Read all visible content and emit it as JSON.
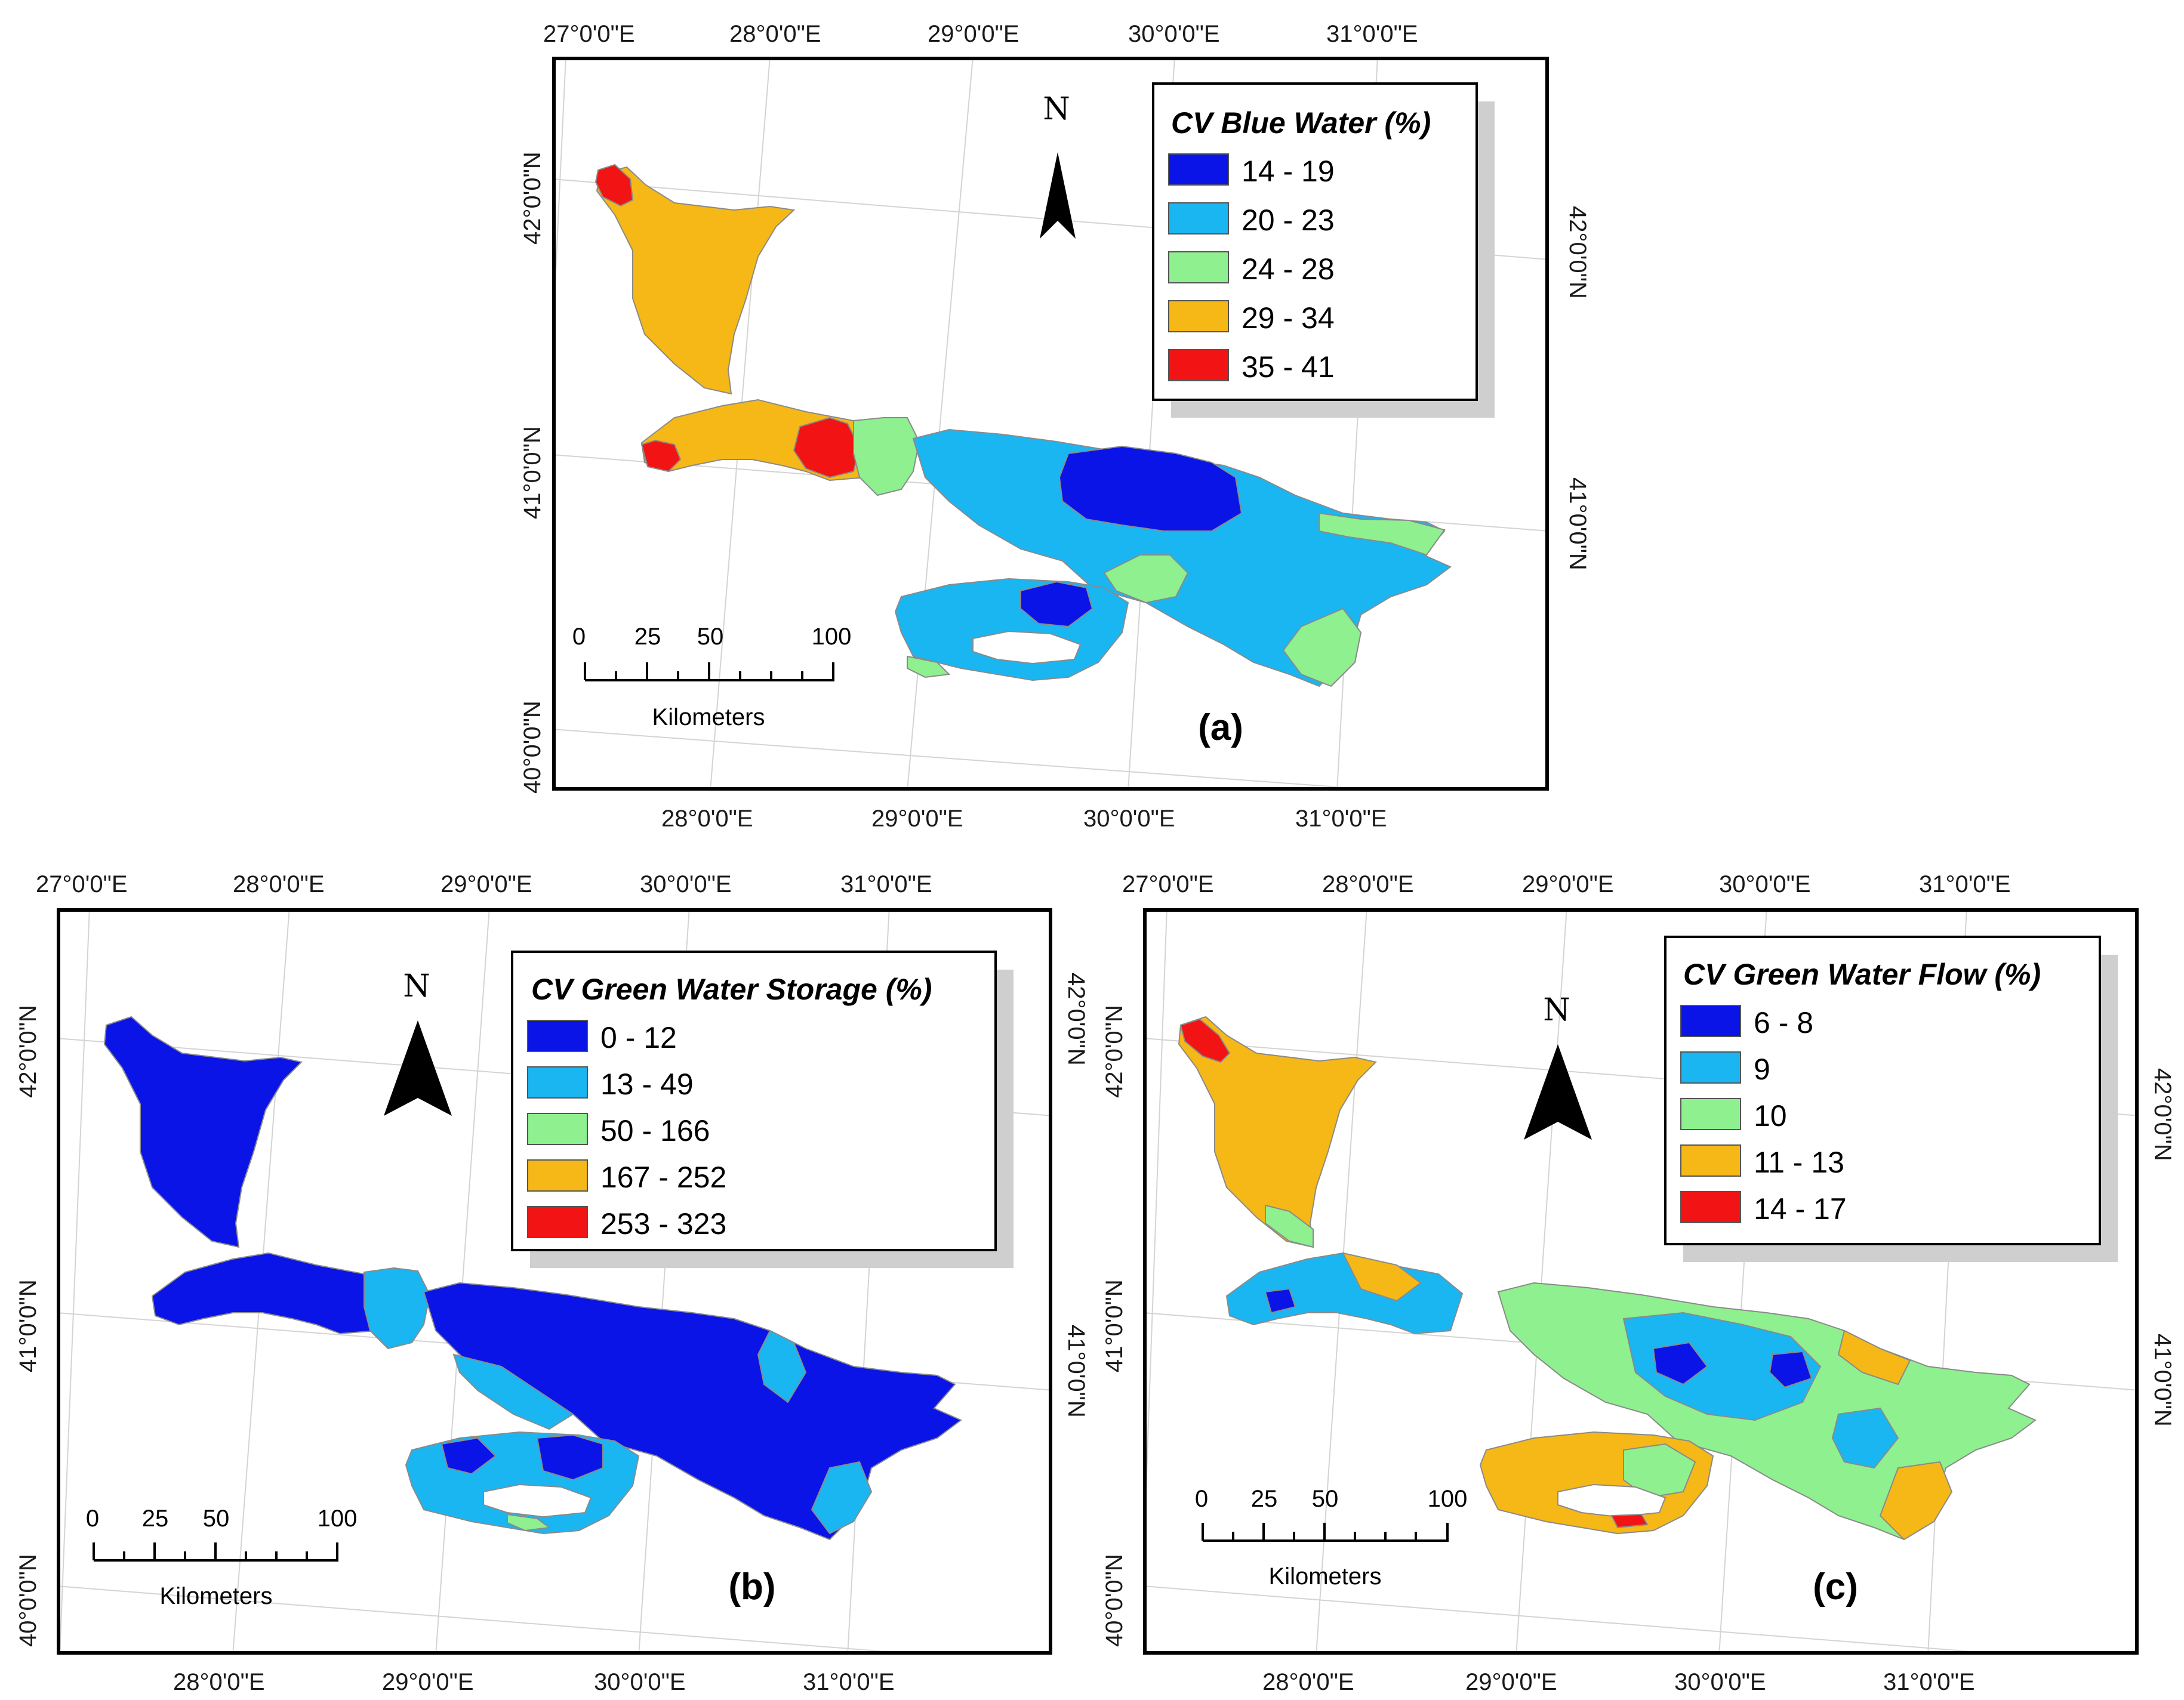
{
  "graticule": {
    "lon_top": [
      "27°0'0\"E",
      "28°0'0\"E",
      "29°0'0\"E",
      "30°0'0\"E",
      "31°0'0\"E"
    ],
    "lon_bottom": [
      "28°0'0\"E",
      "29°0'0\"E",
      "30°0'0\"E",
      "31°0'0\"E"
    ],
    "lat_left": [
      "42°0'0\"N",
      "41°0'0\"N",
      "40°0'0\"N"
    ],
    "lat_right": [
      "42°0'0\"N",
      "41°0'0\"N"
    ]
  },
  "north_arrow_label": "N",
  "scale_bar": {
    "ticks": [
      "0",
      "25",
      "50",
      "100"
    ],
    "units": "Kilometers"
  },
  "colors": {
    "class1": "#0a14e6",
    "class2": "#1ab6f2",
    "class3": "#8ef08e",
    "class4": "#f6b816",
    "class5": "#f21414",
    "boundary": "#8a8a8a"
  },
  "panels": [
    {
      "label": "(a)",
      "legend_title": "CV Blue Water (%)",
      "classes": [
        "14 - 19",
        "20 - 23",
        "24 - 28",
        "29 - 34",
        "35 - 41"
      ]
    },
    {
      "label": "(b)",
      "legend_title": "CV Green Water Storage (%)",
      "classes": [
        "0 - 12",
        "13 - 49",
        "50 - 166",
        "167 - 252",
        "253 - 323"
      ]
    },
    {
      "label": "(c)",
      "legend_title": "CV Green Water Flow (%)",
      "classes": [
        "6 - 8",
        "9",
        "10",
        "11 - 13",
        "14 - 17"
      ]
    }
  ]
}
